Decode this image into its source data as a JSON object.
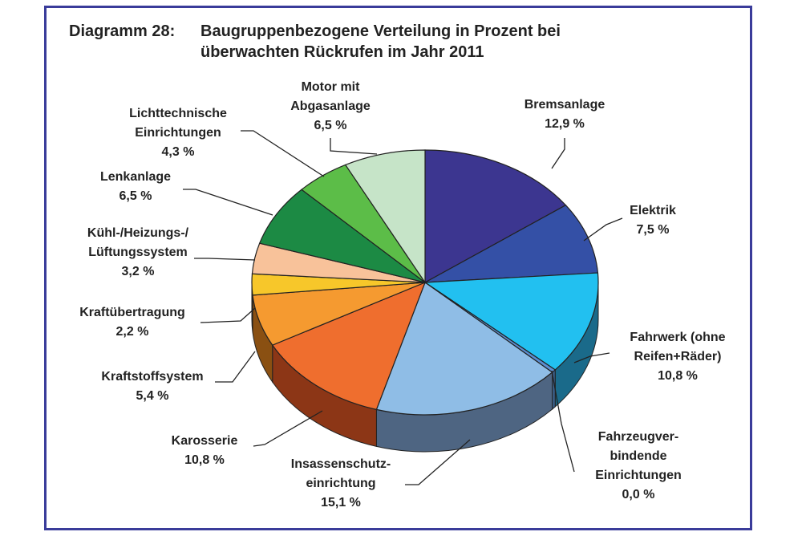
{
  "diagram": {
    "number_label": "Diagramm 28:",
    "title_line1": "Baugruppenbezogene Verteilung in Prozent bei",
    "title_line2": "überwachten Rückrufen im Jahr 2011"
  },
  "chart_data": {
    "type": "pie",
    "title": "Baugruppenbezogene Verteilung in Prozent bei überwachten Rückrufen im Jahr 2011",
    "unit": "%",
    "slices": [
      {
        "label_lines": [
          "Bremsanlage"
        ],
        "value_text": "12,9 %",
        "value": 12.9,
        "color": "#3c3690",
        "side": "#27235e"
      },
      {
        "label_lines": [
          "Elektrik"
        ],
        "value_text": "7,5 %",
        "value": 7.5,
        "color": "#3450a6",
        "side": "#21336c"
      },
      {
        "label_lines": [
          "Fahrwerk (ohne",
          "Reifen+Räder)"
        ],
        "value_text": "10,8 %",
        "value": 10.8,
        "color": "#22c0f0",
        "side": "#1a6a8a"
      },
      {
        "label_lines": [
          "Fahrzeugver-",
          "bindende",
          "Einrichtungen"
        ],
        "value_text": "0,0 %",
        "value": 0.0,
        "color": "#5b8ed0",
        "side": "#3b5f8a"
      },
      {
        "label_lines": [
          "Insassenschutz-",
          "einrichtung"
        ],
        "value_text": "15,1 %",
        "value": 15.1,
        "color": "#8fbde6",
        "side": "#4e6582"
      },
      {
        "label_lines": [
          "Karosserie"
        ],
        "value_text": "10,8 %",
        "value": 10.8,
        "color": "#ef6e2e",
        "side": "#8c3616"
      },
      {
        "label_lines": [
          "Kraftstoffsystem"
        ],
        "value_text": "5,4 %",
        "value": 5.4,
        "color": "#f59a30",
        "side": "#8a5012"
      },
      {
        "label_lines": [
          "Kraftübertragung"
        ],
        "value_text": "2,2 %",
        "value": 2.2,
        "color": "#f7c72a",
        "side": "#8c6c10"
      },
      {
        "label_lines": [
          "Kühl-/Heizungs-/",
          "Lüftungssystem"
        ],
        "value_text": "3,2 %",
        "value": 3.2,
        "color": "#f8c29a",
        "side": "#8a6a50"
      },
      {
        "label_lines": [
          "Lenkanlage"
        ],
        "value_text": "6,5 %",
        "value": 6.5,
        "color": "#1c8a44",
        "side": "#0f4c25"
      },
      {
        "label_lines": [
          "Lichttechnische",
          "Einrichtungen"
        ],
        "value_text": "4,3 %",
        "value": 4.3,
        "color": "#5cbd48",
        "side": "#336a28"
      },
      {
        "label_lines": [
          "Motor mit",
          "Abgasanlage"
        ],
        "value_text": "6,5 %",
        "value": 6.5,
        "color": "#c6e4c8",
        "side": "#7a8e7c"
      }
    ]
  }
}
